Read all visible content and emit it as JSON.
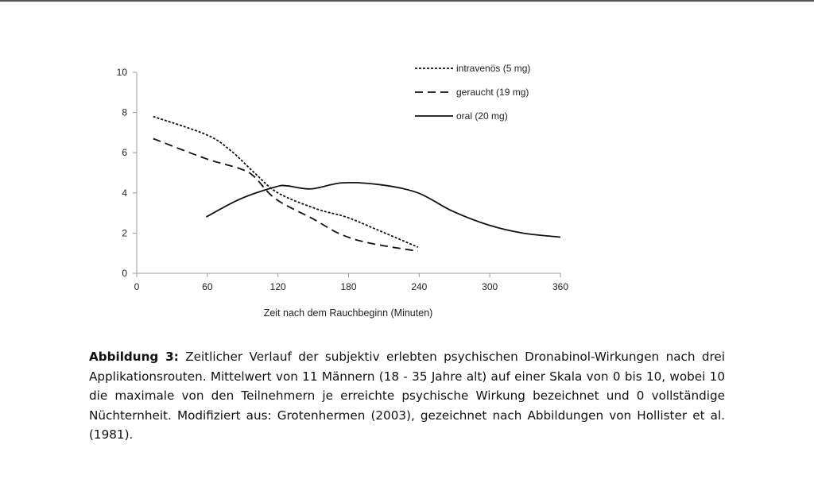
{
  "chart_data": {
    "type": "line",
    "title": "",
    "xlabel": "Zeit nach dem Rauchbeginn (Minuten)",
    "ylabel": "",
    "xlim": [
      0,
      360
    ],
    "ylim": [
      0,
      10
    ],
    "xticks": [
      0,
      60,
      120,
      180,
      240,
      300,
      360
    ],
    "yticks": [
      0,
      2,
      4,
      6,
      8,
      10
    ],
    "grid": false,
    "legend_position": "top-right",
    "series": [
      {
        "name": "intravenös (5 mg)",
        "style": "dotted",
        "x": [
          14,
          59,
          80,
          100,
          120,
          153,
          178,
          203,
          239
        ],
        "y": [
          7.8,
          6.9,
          6.1,
          5.0,
          4.0,
          3.2,
          2.8,
          2.2,
          1.3
        ]
      },
      {
        "name": "geraucht (19 mg)",
        "style": "dashed",
        "x": [
          14,
          59,
          88,
          100,
          118,
          150,
          173,
          198,
          239
        ],
        "y": [
          6.7,
          5.7,
          5.2,
          4.8,
          3.7,
          2.7,
          1.95,
          1.5,
          1.1
        ]
      },
      {
        "name": "oral (20 mg)",
        "style": "solid",
        "x": [
          59,
          88,
          118,
          128,
          148,
          175,
          208,
          239,
          268,
          299,
          328,
          360
        ],
        "y": [
          2.8,
          3.7,
          4.3,
          4.35,
          4.2,
          4.5,
          4.4,
          4.0,
          3.1,
          2.4,
          2.0,
          1.8
        ]
      }
    ]
  },
  "caption": {
    "label": "Abbildung 3:",
    "text": "Zeitlicher Verlauf der subjektiv erlebten psychischen Dronabinol-Wirkungen nach drei Applikationsrouten. Mittelwert von 11 Männern (18 - 35 Jahre alt) auf einer Skala von 0 bis 10, wobei 10 die maximale von den Teilnehmern je erreichte psychische Wirkung bezeichnet und 0 vollständige Nüchternheit. Modifiziert aus: Grotenhermen (2003), gezeichnet nach Abbildungen von Hollister et al. (1981)."
  }
}
